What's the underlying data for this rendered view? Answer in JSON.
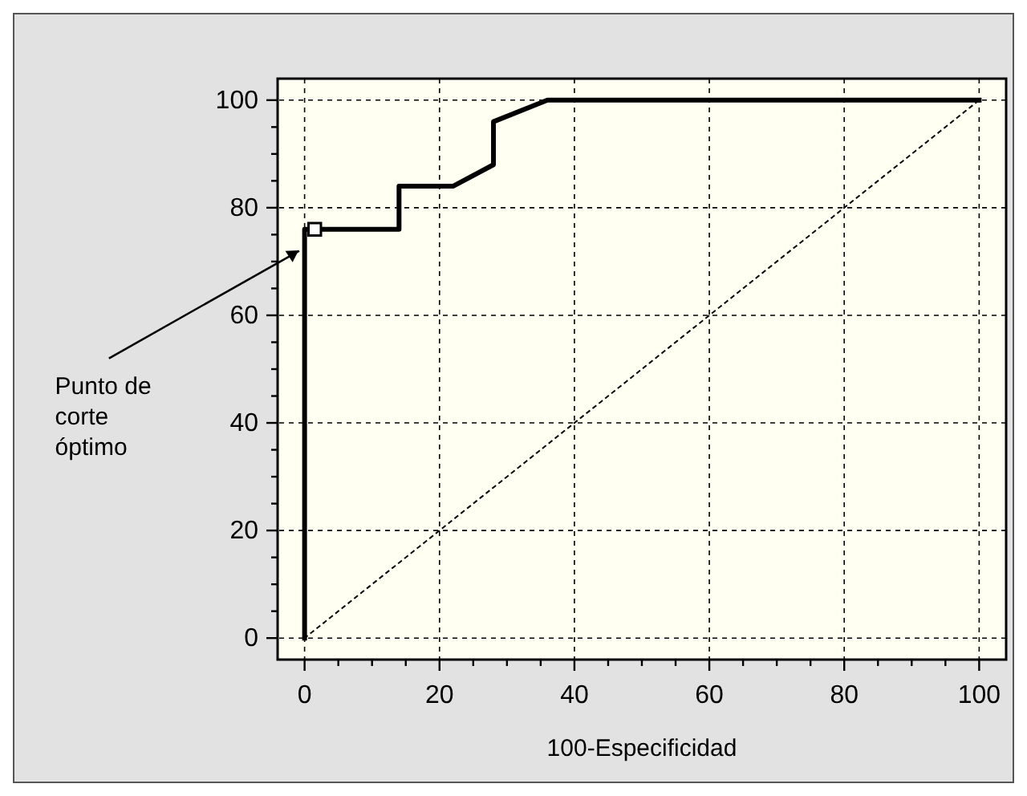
{
  "chart_data": {
    "type": "line",
    "xlabel": "100-Especificidad",
    "xlim": [
      -4,
      104
    ],
    "ylim": [
      -4,
      104
    ],
    "xticks": [
      0,
      {
        "value": 5,
        "label": null
      },
      {
        "value": 10,
        "label": null
      },
      {
        "value": 15,
        "label": null
      },
      20,
      {
        "value": 25,
        "label": null
      },
      {
        "value": 30,
        "label": null
      },
      {
        "value": 35,
        "label": null
      },
      40,
      {
        "value": 45,
        "label": null
      },
      {
        "value": 50,
        "label": null
      },
      {
        "value": 55,
        "label": null
      },
      60,
      {
        "value": 65,
        "label": null
      },
      {
        "value": 70,
        "label": null
      },
      {
        "value": 75,
        "label": null
      },
      80,
      {
        "value": 85,
        "label": null
      },
      {
        "value": 90,
        "label": null
      },
      {
        "value": 95,
        "label": null
      },
      100
    ],
    "yticks": [
      0,
      {
        "value": 5,
        "label": null
      },
      {
        "value": 10,
        "label": null
      },
      {
        "value": 15,
        "label": null
      },
      20,
      {
        "value": 25,
        "label": null
      },
      {
        "value": 30,
        "label": null
      },
      {
        "value": 35,
        "label": null
      },
      40,
      {
        "value": 45,
        "label": null
      },
      {
        "value": 50,
        "label": null
      },
      {
        "value": 55,
        "label": null
      },
      60,
      {
        "value": 65,
        "label": null
      },
      {
        "value": 70,
        "label": null
      },
      {
        "value": 75,
        "label": null
      },
      80,
      {
        "value": 85,
        "label": null
      },
      {
        "value": 90,
        "label": null
      },
      {
        "value": 95,
        "label": null
      },
      100
    ],
    "grid": true,
    "series": [
      {
        "color": "#000000",
        "line_style": "solid",
        "x": [
          0,
          0,
          14,
          14,
          22,
          28,
          28,
          36,
          100
        ],
        "values": [
          0,
          76,
          76,
          84,
          84,
          88,
          96,
          100,
          100
        ]
      },
      {
        "color": "#000000",
        "line_style": "dotted",
        "x": [
          0,
          100
        ],
        "values": [
          0,
          100
        ]
      },
      {
        "type": "scatter",
        "color": "#ffffff",
        "marker": "square",
        "x": [
          1.5
        ],
        "values": [
          76
        ]
      }
    ],
    "annotations": [
      {
        "text": "Punto de corte óptimo",
        "x": 0,
        "y": 72
      }
    ]
  }
}
